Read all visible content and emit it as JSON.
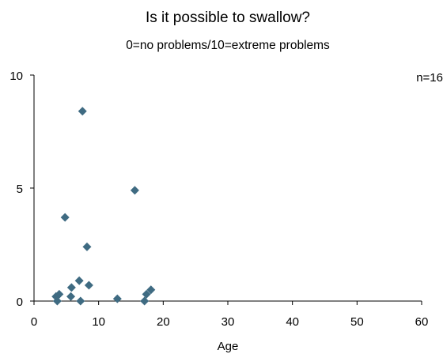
{
  "chart_data": {
    "type": "scatter",
    "title": "Is it possible to swallow?",
    "subtitle": "0=no problems/10=extreme problems",
    "xlabel": "Age",
    "ylabel": "",
    "annotation": "n=16",
    "xlim": [
      0,
      60
    ],
    "ylim": [
      0,
      10
    ],
    "xticks": [
      0,
      10,
      20,
      30,
      40,
      50,
      60
    ],
    "yticks": [
      0,
      5,
      10
    ],
    "grid": false,
    "marker": "diamond",
    "marker_color": "#3f6b82",
    "points": [
      {
        "x": 3.4,
        "y": 0.2
      },
      {
        "x": 3.6,
        "y": 0.0
      },
      {
        "x": 3.9,
        "y": 0.3
      },
      {
        "x": 4.8,
        "y": 3.7
      },
      {
        "x": 5.7,
        "y": 0.2
      },
      {
        "x": 5.8,
        "y": 0.6
      },
      {
        "x": 7.0,
        "y": 0.9
      },
      {
        "x": 7.2,
        "y": 0.0
      },
      {
        "x": 7.5,
        "y": 8.4
      },
      {
        "x": 8.2,
        "y": 2.4
      },
      {
        "x": 8.5,
        "y": 0.7
      },
      {
        "x": 12.9,
        "y": 0.1
      },
      {
        "x": 15.6,
        "y": 4.9
      },
      {
        "x": 17.1,
        "y": 0.0
      },
      {
        "x": 17.4,
        "y": 0.3
      },
      {
        "x": 18.1,
        "y": 0.5
      }
    ]
  }
}
